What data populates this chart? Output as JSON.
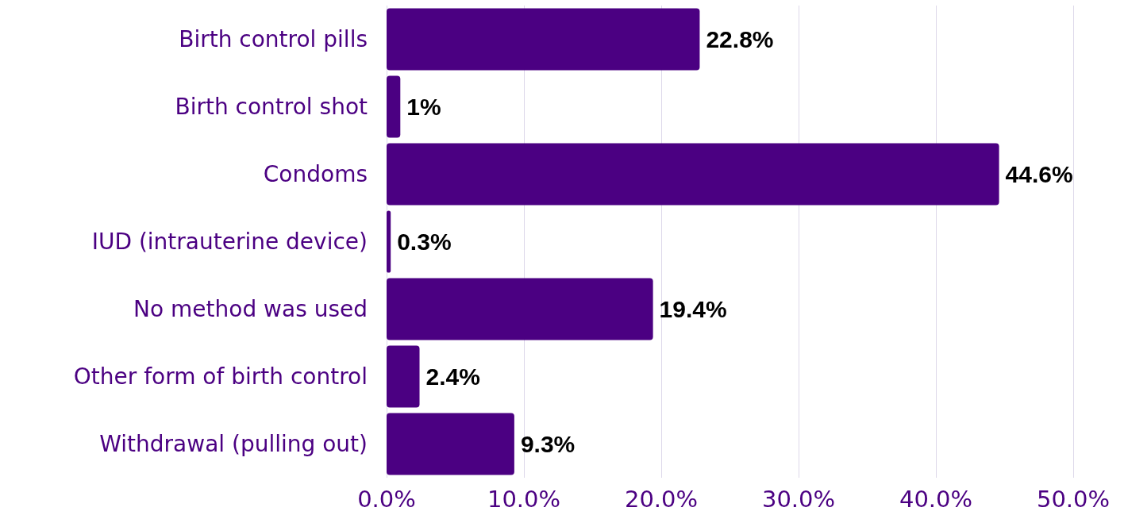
{
  "chart_data": {
    "type": "bar",
    "orientation": "horizontal",
    "categories": [
      "Birth control pills",
      "Birth control shot",
      "Condoms",
      "IUD (intrauterine device)",
      "No method was used",
      "Other form of birth control",
      "Withdrawal (pulling out)"
    ],
    "values": [
      22.8,
      1,
      44.6,
      0.3,
      19.4,
      2.4,
      9.3
    ],
    "value_labels": [
      "22.8%",
      "1%",
      "44.6%",
      "0.3%",
      "19.4%",
      "2.4%",
      "9.3%"
    ],
    "color": "#4b0082",
    "xlim": [
      0,
      50
    ],
    "xticks": [
      {
        "value": 0,
        "label": "0.0%"
      },
      {
        "value": 10,
        "label": "10.0%"
      },
      {
        "value": 20,
        "label": "20.0%"
      },
      {
        "value": 30,
        "label": "30.0%"
      },
      {
        "value": 40,
        "label": "40.0%"
      },
      {
        "value": 50,
        "label": "50.0%"
      }
    ],
    "grid": "x"
  }
}
